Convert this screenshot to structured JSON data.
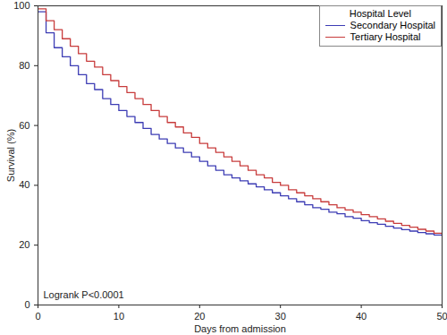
{
  "chart_data": {
    "type": "line",
    "xlabel": "Days from admission",
    "ylabel": "Survival (%)",
    "annotation": "Logrank P<0.0001",
    "legend_title": "Hospital Level",
    "legend": "top-right",
    "line_style": "step",
    "x": [
      0,
      1,
      2,
      3,
      4,
      5,
      6,
      7,
      8,
      9,
      10,
      11,
      12,
      13,
      14,
      15,
      16,
      17,
      18,
      19,
      20,
      21,
      22,
      23,
      24,
      25,
      26,
      27,
      28,
      29,
      30,
      31,
      32,
      33,
      34,
      35,
      36,
      37,
      38,
      39,
      40,
      41,
      42,
      43,
      44,
      45,
      46,
      47,
      48,
      49,
      50
    ],
    "series": [
      {
        "name": "Secondary Hospital",
        "color": "#3c3cb4",
        "values": [
          98,
          91,
          86,
          83,
          80,
          77,
          74,
          72,
          69,
          67,
          65,
          63,
          61,
          59,
          57,
          55.5,
          54,
          52.5,
          51,
          49.5,
          48,
          46.5,
          45,
          43.5,
          42.5,
          41.5,
          40.5,
          39.5,
          38.5,
          37.5,
          36.5,
          35.5,
          34.5,
          33.5,
          32.5,
          32,
          31,
          30.5,
          29.5,
          29,
          28.2,
          27.5,
          27,
          26.3,
          25.7,
          25.2,
          24.7,
          24.2,
          23.8,
          23.4,
          23
        ]
      },
      {
        "name": "Tertiary Hospital",
        "color": "#c83c3c",
        "values": [
          99,
          95,
          92,
          89,
          86.5,
          84,
          81.5,
          79.5,
          77,
          75,
          73,
          71,
          69,
          67,
          65,
          63,
          61,
          59.5,
          57.5,
          56,
          54,
          52.5,
          51,
          49.5,
          48,
          46.5,
          45,
          43.5,
          42.5,
          41,
          40,
          38.5,
          37.5,
          36.5,
          35.5,
          34.5,
          33.5,
          32.5,
          31.8,
          31,
          30.2,
          29.5,
          28.8,
          28,
          27.3,
          26.6,
          26,
          25.3,
          24.7,
          24,
          23.3
        ]
      }
    ],
    "xlim": [
      0,
      50
    ],
    "xticks": [
      0,
      10,
      20,
      30,
      40,
      50
    ],
    "ylim": [
      0,
      100
    ],
    "yticks": [
      0,
      20,
      40,
      60,
      80,
      100
    ]
  }
}
